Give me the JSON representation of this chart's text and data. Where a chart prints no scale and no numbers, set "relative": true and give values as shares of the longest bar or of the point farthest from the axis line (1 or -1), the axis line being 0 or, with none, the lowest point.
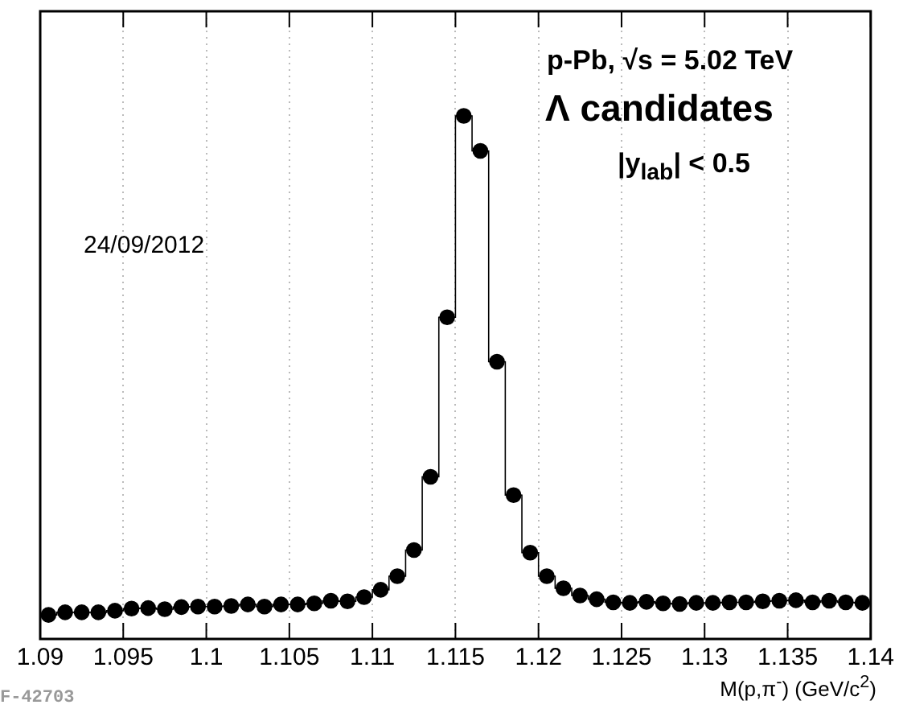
{
  "chart_data": {
    "type": "step",
    "title": "p-Pb, √s = 5.02 TeV",
    "xlabel": "M(p,π$^{-}$) (GeV/c$^{2}$)",
    "annotations": [
      "Λ candidates",
      "|y$_{lab}$| < 0.5",
      "24/09/2012",
      "F-42703"
    ],
    "relative": true,
    "x": [
      1.0905,
      1.0915,
      1.0925,
      1.0935,
      1.0945,
      1.0955,
      1.0965,
      1.0975,
      1.0985,
      1.0995,
      1.1005,
      1.1015,
      1.1025,
      1.1035,
      1.1045,
      1.1055,
      1.1065,
      1.1075,
      1.1085,
      1.1095,
      1.1105,
      1.1115,
      1.1125,
      1.1135,
      1.1145,
      1.1155,
      1.1165,
      1.1175,
      1.1185,
      1.1195,
      1.1205,
      1.1215,
      1.1225,
      1.1235,
      1.1245,
      1.1255,
      1.1265,
      1.1275,
      1.1285,
      1.1295,
      1.1305,
      1.1315,
      1.1325,
      1.1335,
      1.1345,
      1.1355,
      1.1365,
      1.1375,
      1.1385,
      1.1395
    ],
    "values": [
      0.046,
      0.051,
      0.051,
      0.051,
      0.054,
      0.058,
      0.059,
      0.057,
      0.061,
      0.062,
      0.062,
      0.063,
      0.066,
      0.062,
      0.066,
      0.066,
      0.068,
      0.073,
      0.072,
      0.08,
      0.094,
      0.12,
      0.17,
      0.31,
      0.615,
      1,
      0.933,
      0.53,
      0.275,
      0.165,
      0.12,
      0.097,
      0.083,
      0.076,
      0.07,
      0.069,
      0.071,
      0.068,
      0.067,
      0.069,
      0.069,
      0.07,
      0.07,
      0.072,
      0.073,
      0.074,
      0.07,
      0.073,
      0.07,
      0.069
    ],
    "color": "#000000",
    "xlim": [
      1.09,
      1.14
    ],
    "xticks": [
      1.09,
      1.095,
      1.1,
      1.105,
      1.11,
      1.115,
      1.12,
      1.125,
      1.13,
      1.135,
      1.14
    ],
    "grid": "x",
    "marker": "circle",
    "legend": false
  }
}
